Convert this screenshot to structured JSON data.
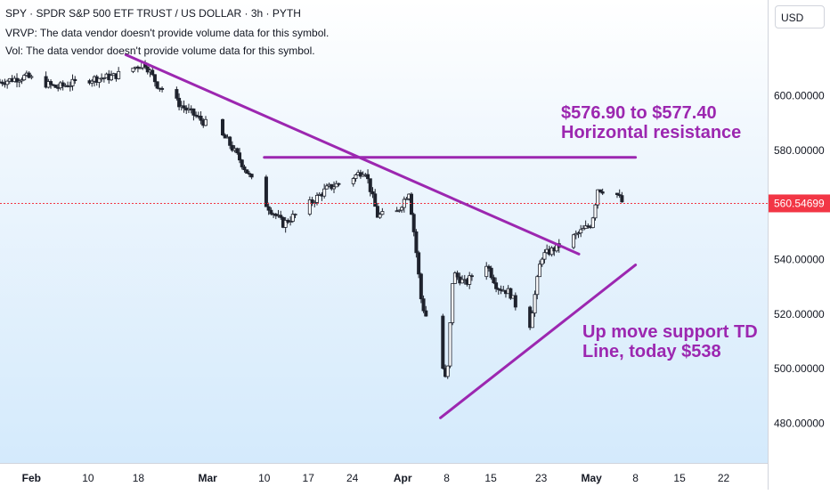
{
  "header": {
    "title": "SPY · SPDR S&P 500 ETF TRUST / US DOLLAR · 3h · PYTH",
    "vrvp": "VRVP: The data vendor doesn't provide volume data for this symbol.",
    "vol": "Vol: The data vendor doesn't provide volume data for this symbol."
  },
  "currency": "USD",
  "last_price": "560.54699",
  "annotations": {
    "resistance_line1": "$576.90 to $577.40",
    "resistance_line2": "Horizontal resistance",
    "support_line1": "Up move support TD",
    "support_line2": "Line, today $538"
  },
  "colors": {
    "up": "#089981",
    "down": "#f23645",
    "candle": "#1e222d",
    "annotation": "#9c27b0",
    "last_price_bg": "#f23645"
  },
  "chart_data": {
    "type": "candlestick",
    "title": "SPY · SPDR S&P 500 ETF TRUST / US DOLLAR · 3h · PYTH",
    "y_ticks": [
      "600.00000",
      "580.00000",
      "560.00000",
      "540.00000",
      "520.00000",
      "500.00000",
      "480.00000"
    ],
    "y_tick_values": [
      600,
      580,
      560,
      540,
      520,
      500,
      480
    ],
    "ylim": [
      472,
      622
    ],
    "x_ticks": [
      "Feb",
      "10",
      "18",
      "Mar",
      "10",
      "17",
      "24",
      "Apr",
      "8",
      "15",
      "23",
      "May",
      "8",
      "15",
      "22"
    ],
    "x_tick_dates": [
      "2025-02-01",
      "2025-02-10",
      "2025-02-18",
      "2025-03-01",
      "2025-03-10",
      "2025-03-17",
      "2025-03-24",
      "2025-04-01",
      "2025-04-08",
      "2025-04-15",
      "2025-04-23",
      "2025-05-01",
      "2025-05-08",
      "2025-05-15",
      "2025-05-22"
    ],
    "xlim": [
      "2025-01-27",
      "2025-05-29"
    ],
    "close_path": [
      [
        "2025-01-27",
        605
      ],
      [
        "2025-01-31",
        607
      ],
      [
        "2025-02-05",
        603
      ],
      [
        "2025-02-10",
        606
      ],
      [
        "2025-02-14",
        607
      ],
      [
        "2025-02-19",
        612
      ],
      [
        "2025-02-21",
        604
      ],
      [
        "2025-02-25",
        596
      ],
      [
        "2025-02-28",
        591
      ],
      [
        "2025-03-04",
        584
      ],
      [
        "2025-03-06",
        577
      ],
      [
        "2025-03-10",
        561
      ],
      [
        "2025-03-13",
        553
      ],
      [
        "2025-03-17",
        560
      ],
      [
        "2025-03-20",
        566
      ],
      [
        "2025-03-24",
        570
      ],
      [
        "2025-03-26",
        573
      ],
      [
        "2025-03-28",
        556
      ],
      [
        "2025-03-31",
        557
      ],
      [
        "2025-04-02",
        565
      ],
      [
        "2025-04-03",
        546
      ],
      [
        "2025-04-04",
        524
      ],
      [
        "2025-04-07",
        504
      ],
      [
        "2025-04-08",
        494
      ],
      [
        "2025-04-09",
        535
      ],
      [
        "2025-04-11",
        531
      ],
      [
        "2025-04-14",
        540
      ],
      [
        "2025-04-16",
        530
      ],
      [
        "2025-04-18",
        528
      ],
      [
        "2025-04-21",
        513
      ],
      [
        "2025-04-23",
        541
      ],
      [
        "2025-04-28",
        548
      ],
      [
        "2025-05-01",
        553
      ],
      [
        "2025-05-02",
        566
      ],
      [
        "2025-05-05",
        564
      ],
      [
        "2025-05-06",
        560.55
      ]
    ],
    "trendlines": [
      {
        "name": "downtrend",
        "points": [
          [
            "2025-02-16",
            615
          ],
          [
            "2025-04-29",
            542
          ]
        ]
      },
      {
        "name": "Horizontal resistance",
        "points": [
          [
            "2025-03-10",
            577.4
          ],
          [
            "2025-05-08",
            577.4
          ]
        ]
      },
      {
        "name": "Up move support TD",
        "points": [
          [
            "2025-04-07",
            482
          ],
          [
            "2025-05-08",
            538
          ]
        ]
      }
    ],
    "last_value": 560.54699,
    "grid": false
  }
}
